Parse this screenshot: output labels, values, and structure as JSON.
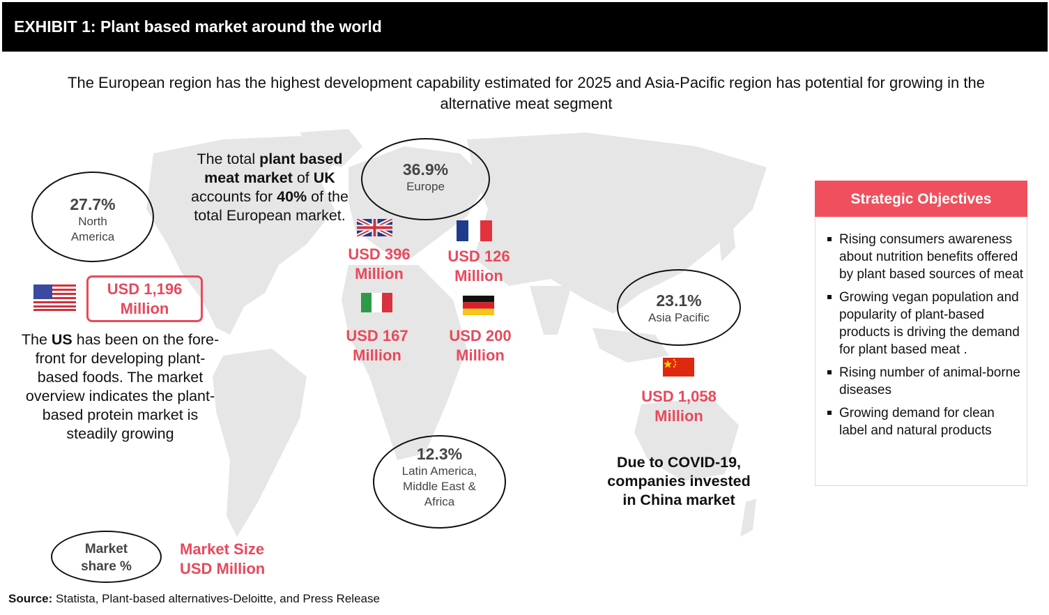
{
  "header": {
    "title": "EXHIBIT 1: Plant based market around the world"
  },
  "subtitle": "The European region has the highest development capability estimated for 2025 and Asia-Pacific region has potential for growing in the alternative meat segment",
  "regions": {
    "north_america": {
      "share": "27.7%",
      "label_line1": "North",
      "label_line2": "America"
    },
    "europe": {
      "share": "36.9%",
      "label": "Europe"
    },
    "asia_pacific": {
      "share": "23.1%",
      "label": "Asia Pacific"
    },
    "lamea": {
      "share": "12.3%",
      "label_line1": "Latin America,",
      "label_line2": "Middle East &",
      "label_line3": "Africa"
    }
  },
  "markets": {
    "us": {
      "line1": "USD 1,196",
      "line2": "Million"
    },
    "uk": {
      "line1": "USD 396",
      "line2": "Million"
    },
    "france": {
      "line1": "USD 126",
      "line2": "Million"
    },
    "italy": {
      "line1": "USD 167",
      "line2": "Million"
    },
    "germany": {
      "line1": "USD 200",
      "line2": "Million"
    },
    "china": {
      "line1": "USD 1,058",
      "line2": "Million"
    }
  },
  "uk_note": {
    "p1": "The total ",
    "b1": "plant based meat market",
    "p2": " of ",
    "b2": "UK",
    "p3": " accounts for ",
    "b3": "40%",
    "p4": " of the total European market."
  },
  "us_note": {
    "p1": "The ",
    "b1": "US",
    "p2": " has been on the fore-front for developing plant-based foods. The market overview indicates the plant-based protein market is steadily growing"
  },
  "china_note": {
    "line1": "Due to COVID-19,",
    "line2": "companies invested",
    "line3": "in China market"
  },
  "legend": {
    "share_line1": "Market",
    "share_line2": "share %",
    "size_line1": "Market Size",
    "size_line2": "USD Million"
  },
  "strategic": {
    "title": "Strategic Objectives",
    "items": [
      "Rising consumers awareness about nutrition benefits offered by plant based sources of meat",
      "Growing vegan population and popularity of plant-based products is driving the demand for plant based meat .",
      "Rising number of animal-borne diseases",
      "Growing demand for clean label and natural products"
    ]
  },
  "source": {
    "label": "Source:",
    "text": " Statista, Plant-based alternatives-Deloitte, and Press Release"
  },
  "colors": {
    "accent": "#e8495c",
    "header_bg": "#000000",
    "map": "#e6e6e6"
  }
}
